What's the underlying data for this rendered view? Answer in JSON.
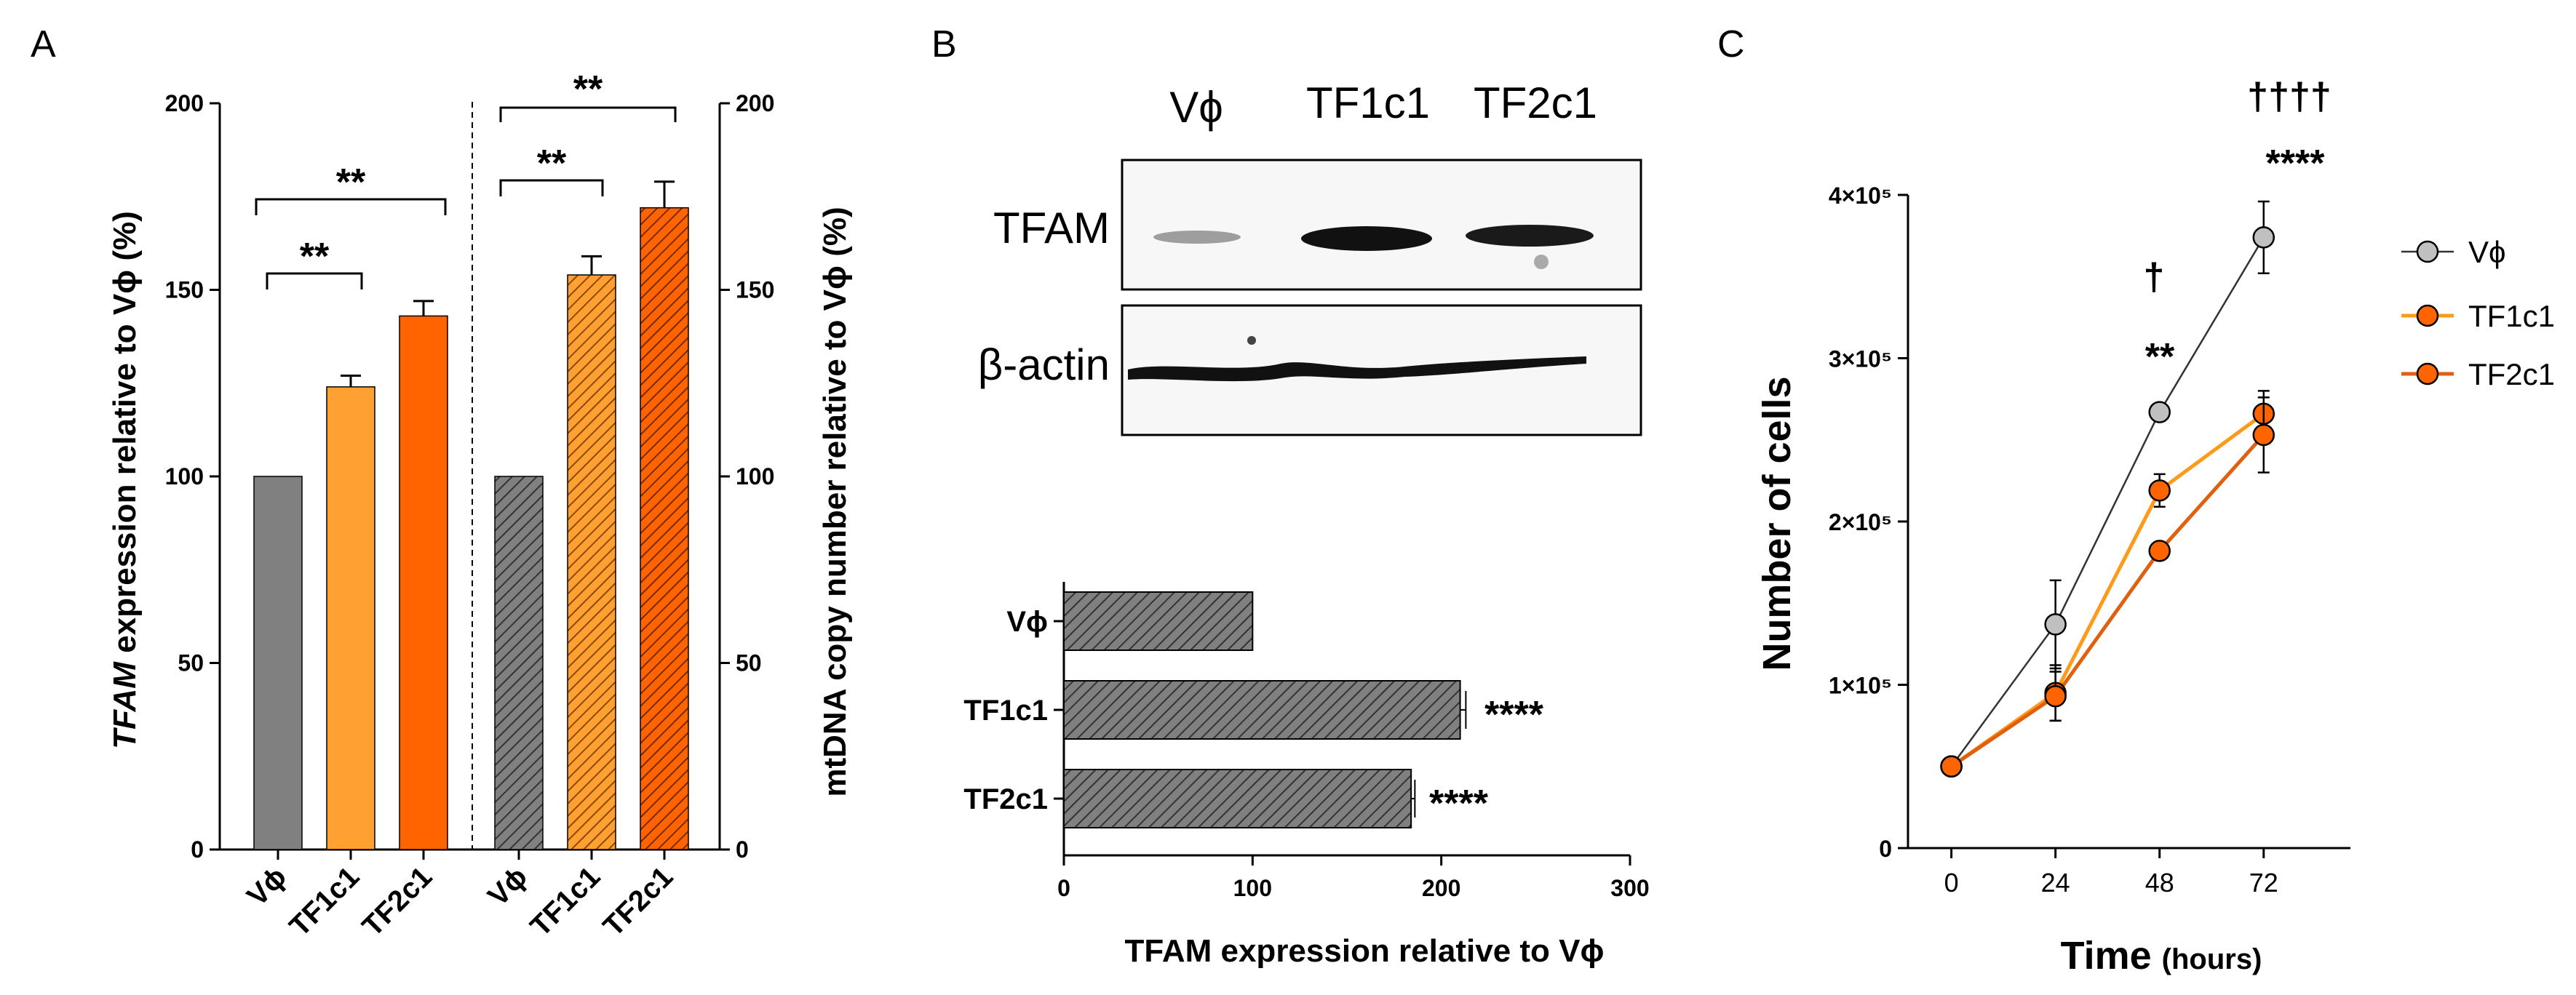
{
  "colors": {
    "vphi": "#808080",
    "tf1c1": "#FFA033",
    "tf2c1": "#FF6400",
    "hbar": "#808080",
    "line_vphi": "#C0C0C0",
    "line_tf1c1": "#FF9A1A",
    "line_tf2c1": "#E06010"
  },
  "panel_a": {
    "letter": "A",
    "left_ylabel_italic": "TFAM",
    "left_ylabel_rest": " expression relative to Vϕ (%)",
    "right_ylabel": "mtDNA copy number relative to Vϕ  (%)",
    "left_star_1": "**",
    "left_star_2": "**",
    "right_star_1": "**",
    "right_star_2": "**"
  },
  "panel_b": {
    "letter": "B",
    "blot_lanes": [
      "Vϕ",
      "TF1c1",
      "TF2c1"
    ],
    "blot_rows": [
      "TFAM",
      "β-actin"
    ],
    "xlabel": "TFAM expression relative to Vϕ",
    "star_tf1c1": "****",
    "star_tf2c1": "****"
  },
  "panel_c": {
    "letter": "C",
    "ylabel": "Number of cells",
    "xlabel_main": "Time",
    "xlabel_unit": "(hours)",
    "dagger_48": "†",
    "star_48": "**",
    "dagger_72": "††††",
    "star_72": "****"
  },
  "chart_data": [
    {
      "type": "bar",
      "title": "",
      "ylabel": "TFAM expression relative to Vϕ (%)",
      "categories": [
        "Vϕ",
        "TF1c1",
        "TF2c1"
      ],
      "values": [
        100,
        124,
        143
      ],
      "errors": [
        0,
        3,
        4
      ],
      "ylim": [
        0,
        200
      ],
      "yticks": [
        0,
        50,
        100,
        150,
        200
      ],
      "annotations": [
        {
          "from": "Vϕ",
          "to": "TF1c1",
          "label": "**"
        },
        {
          "from": "Vϕ",
          "to": "TF2c1",
          "label": "**"
        }
      ]
    },
    {
      "type": "bar",
      "title": "",
      "ylabel": "mtDNA copy number relative to Vϕ  (%)",
      "categories": [
        "Vϕ",
        "TF1c1",
        "TF2c1"
      ],
      "values": [
        100,
        154,
        172
      ],
      "errors": [
        0,
        5,
        7
      ],
      "hatched": true,
      "ylim": [
        0,
        200
      ],
      "yticks": [
        0,
        50,
        100,
        150,
        200
      ],
      "annotations": [
        {
          "from": "Vϕ",
          "to": "TF1c1",
          "label": "**"
        },
        {
          "from": "Vϕ",
          "to": "TF2c1",
          "label": "**"
        }
      ]
    },
    {
      "type": "bar",
      "orientation": "horizontal",
      "title": "",
      "xlabel": "TFAM expression relative to Vϕ",
      "categories": [
        "Vϕ",
        "TF1c1",
        "TF2c1"
      ],
      "values": [
        100,
        210,
        184
      ],
      "errors": [
        0,
        3,
        2
      ],
      "hatched": true,
      "xlim": [
        0,
        300
      ],
      "xticks": [
        0,
        100,
        200,
        300
      ],
      "annotations": [
        {
          "category": "TF1c1",
          "label": "****"
        },
        {
          "category": "TF2c1",
          "label": "****"
        }
      ]
    },
    {
      "type": "line",
      "title": "",
      "xlabel": "Time (hours)",
      "ylabel": "Number of cells",
      "x": [
        0,
        24,
        48,
        72
      ],
      "xlim": [
        -10,
        92
      ],
      "xticks": [
        0,
        24,
        48,
        72
      ],
      "ylim": [
        0,
        400000
      ],
      "yticks": [
        0,
        100000,
        200000,
        300000,
        400000
      ],
      "ytick_labels": [
        "0",
        "1×10⁵",
        "2×10⁵",
        "3×10⁵",
        "4×10⁵"
      ],
      "legend_position": "right",
      "series": [
        {
          "name": "Vϕ",
          "values": [
            50000,
            137000,
            267000,
            374000
          ],
          "errors": [
            0,
            27000,
            0,
            22000
          ]
        },
        {
          "name": "TF1c1",
          "values": [
            50000,
            95000,
            219000,
            266000
          ],
          "errors": [
            0,
            17000,
            10000,
            14000
          ]
        },
        {
          "name": "TF2c1",
          "values": [
            50000,
            93000,
            182000,
            253000
          ],
          "errors": [
            0,
            15000,
            0,
            23000
          ]
        }
      ],
      "annotations": [
        {
          "x": 48,
          "labels": [
            "†",
            "**"
          ]
        },
        {
          "x": 72,
          "labels": [
            "††††",
            "****"
          ]
        }
      ]
    }
  ]
}
